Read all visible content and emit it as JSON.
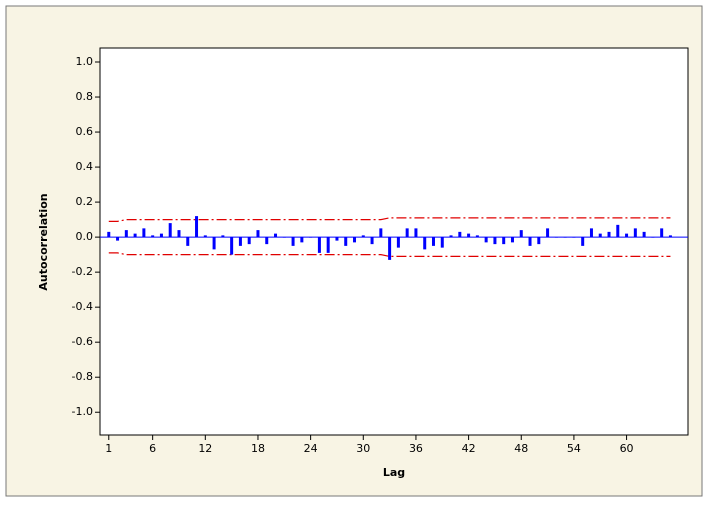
{
  "chart_data": {
    "type": "acf",
    "xlabel": "Lag",
    "ylabel": "Autocorrelation",
    "x": [
      1,
      2,
      3,
      4,
      5,
      6,
      7,
      8,
      9,
      10,
      11,
      12,
      13,
      14,
      15,
      16,
      17,
      18,
      19,
      20,
      21,
      22,
      23,
      24,
      25,
      26,
      27,
      28,
      29,
      30,
      31,
      32,
      33,
      34,
      35,
      36,
      37,
      38,
      39,
      40,
      41,
      42,
      43,
      44,
      45,
      46,
      47,
      48,
      49,
      50,
      51,
      52,
      53,
      54,
      55,
      56,
      57,
      58,
      59,
      60,
      61,
      62,
      63,
      64,
      65
    ],
    "values": [
      0.03,
      -0.02,
      0.04,
      0.02,
      0.05,
      0.01,
      0.02,
      0.08,
      0.04,
      -0.05,
      0.12,
      0.01,
      -0.07,
      0.01,
      -0.1,
      -0.05,
      -0.04,
      0.04,
      -0.04,
      0.02,
      0,
      -0.05,
      -0.03,
      0,
      -0.09,
      -0.09,
      -0.02,
      -0.05,
      -0.03,
      0.01,
      -0.04,
      0.05,
      -0.13,
      -0.06,
      0.05,
      0.05,
      -0.07,
      -0.05,
      -0.06,
      0.01,
      0.03,
      0.02,
      0.01,
      -0.03,
      -0.04,
      -0.04,
      -0.03,
      0.04,
      -0.05,
      -0.04,
      0.05,
      0,
      0,
      0,
      -0.05,
      0.05,
      0.02,
      0.03,
      0.07,
      0.02,
      0.05,
      0.03,
      0,
      0.05,
      0.01
    ],
    "upper_limit": [
      0.09,
      0.09,
      0.1,
      0.1,
      0.1,
      0.1,
      0.1,
      0.1,
      0.1,
      0.1,
      0.1,
      0.1,
      0.1,
      0.1,
      0.1,
      0.1,
      0.1,
      0.1,
      0.1,
      0.1,
      0.1,
      0.1,
      0.1,
      0.1,
      0.1,
      0.1,
      0.1,
      0.1,
      0.1,
      0.1,
      0.1,
      0.1,
      0.11,
      0.11,
      0.11,
      0.11,
      0.11,
      0.11,
      0.11,
      0.11,
      0.11,
      0.11,
      0.11,
      0.11,
      0.11,
      0.11,
      0.11,
      0.11,
      0.11,
      0.11,
      0.11,
      0.11,
      0.11,
      0.11,
      0.11,
      0.11,
      0.11,
      0.11,
      0.11,
      0.11,
      0.11,
      0.11,
      0.11,
      0.11,
      0.11
    ],
    "lower_limit": [
      -0.09,
      -0.09,
      -0.1,
      -0.1,
      -0.1,
      -0.1,
      -0.1,
      -0.1,
      -0.1,
      -0.1,
      -0.1,
      -0.1,
      -0.1,
      -0.1,
      -0.1,
      -0.1,
      -0.1,
      -0.1,
      -0.1,
      -0.1,
      -0.1,
      -0.1,
      -0.1,
      -0.1,
      -0.1,
      -0.1,
      -0.1,
      -0.1,
      -0.1,
      -0.1,
      -0.1,
      -0.1,
      -0.11,
      -0.11,
      -0.11,
      -0.11,
      -0.11,
      -0.11,
      -0.11,
      -0.11,
      -0.11,
      -0.11,
      -0.11,
      -0.11,
      -0.11,
      -0.11,
      -0.11,
      -0.11,
      -0.11,
      -0.11,
      -0.11,
      -0.11,
      -0.11,
      -0.11,
      -0.11,
      -0.11,
      -0.11,
      -0.11,
      -0.11,
      -0.11,
      -0.11,
      -0.11,
      -0.11,
      -0.11,
      -0.11
    ],
    "color": "#0000ff",
    "limit_color": "#e00000",
    "xlim": [
      0,
      67
    ],
    "ylim": [
      -1.13,
      1.08
    ],
    "xticks": [
      1,
      6,
      12,
      18,
      24,
      30,
      36,
      42,
      48,
      54,
      60
    ],
    "yticks": [
      {
        "value": 1,
        "label": "1.0"
      },
      {
        "value": 0.8,
        "label": "0.8"
      },
      {
        "value": 0.6,
        "label": "0.6"
      },
      {
        "value": 0.4,
        "label": "0.4"
      },
      {
        "value": 0.2,
        "label": "0.2"
      },
      {
        "value": 0,
        "label": "0.0"
      },
      {
        "value": -0.2,
        "label": "-0.2"
      },
      {
        "value": -0.4,
        "label": "-0.4"
      },
      {
        "value": -0.6,
        "label": "-0.6"
      },
      {
        "value": -0.8,
        "label": "-0.8"
      },
      {
        "value": -1,
        "label": "-1.0"
      }
    ]
  }
}
